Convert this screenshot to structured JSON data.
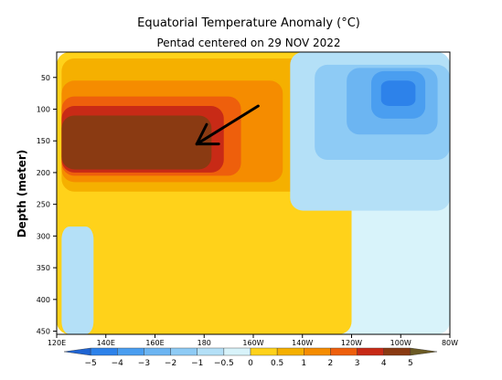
{
  "chart_data": {
    "type": "heatmap",
    "title": "Equatorial Temperature Anomaly (°C)",
    "subtitle": "Pentad centered on 29 NOV 2022",
    "ylabel": "Depth (meter)",
    "xlabel": "",
    "x_ticks": [
      "120E",
      "140E",
      "160E",
      "180",
      "160W",
      "140W",
      "120W",
      "100W",
      "80W"
    ],
    "x_tick_lon": [
      120,
      140,
      160,
      180,
      200,
      220,
      240,
      260,
      280
    ],
    "xlim": [
      120,
      280
    ],
    "y_ticks": [
      50,
      100,
      150,
      200,
      250,
      300,
      350,
      400,
      450
    ],
    "ylim": [
      455,
      10
    ],
    "y_reversed": true,
    "colorbar": {
      "tick_labels": [
        "−5",
        "−4",
        "−3",
        "−2",
        "−1",
        "−0.5",
        "0",
        "0.5",
        "1",
        "2",
        "3",
        "4",
        "5"
      ],
      "colors": [
        "#1f64d2",
        "#2d82ea",
        "#4a9ef0",
        "#6cb5f2",
        "#8ecbf5",
        "#b4e0f7",
        "#d8f3fa",
        "#ffd21a",
        "#f5b000",
        "#f58c00",
        "#ee5f0c",
        "#c82a16",
        "#8a3a12",
        "#6b5a24"
      ]
    },
    "anomaly_regions": [
      {
        "level": "-0.5 to 0",
        "color": "#d8f3fa",
        "lon_range": [
          120,
          280
        ],
        "depth_range": [
          10,
          455
        ]
      },
      {
        "level": "0 to 0.5",
        "color": "#ffd21a",
        "lon_range": [
          120,
          240
        ],
        "depth_range": [
          10,
          455
        ]
      },
      {
        "level": "0.5 to 1",
        "color": "#f5b000",
        "lon_range": [
          122,
          222
        ],
        "depth_range": [
          20,
          230
        ]
      },
      {
        "level": "1 to 2",
        "color": "#f58c00",
        "lon_range": [
          122,
          212
        ],
        "depth_range": [
          55,
          215
        ]
      },
      {
        "level": "2 to 3",
        "color": "#ee5f0c",
        "lon_range": [
          122,
          195
        ],
        "depth_range": [
          80,
          205
        ]
      },
      {
        "level": "3 to 4",
        "color": "#c82a16",
        "lon_range": [
          122,
          188
        ],
        "depth_range": [
          95,
          200
        ]
      },
      {
        "level": "4 to 5",
        "color": "#8a3a12",
        "lon_range": [
          122,
          183
        ],
        "depth_range": [
          110,
          195
        ]
      },
      {
        "level": "-1 to -0.5",
        "color": "#b4e0f7",
        "lon_range": [
          122,
          135
        ],
        "depth_range": [
          285,
          455
        ]
      },
      {
        "level": "-1 to -0.5",
        "color": "#b4e0f7",
        "lon_range": [
          215,
          280
        ],
        "depth_range": [
          10,
          260
        ]
      },
      {
        "level": "-2 to -1",
        "color": "#8ecbf5",
        "lon_range": [
          225,
          280
        ],
        "depth_range": [
          30,
          180
        ]
      },
      {
        "level": "-3 to -2",
        "color": "#6cb5f2",
        "lon_range": [
          238,
          275
        ],
        "depth_range": [
          35,
          140
        ]
      },
      {
        "level": "-4 to -3",
        "color": "#4a9ef0",
        "lon_range": [
          248,
          270
        ],
        "depth_range": [
          40,
          115
        ]
      },
      {
        "level": "-5 to -4",
        "color": "#2d82ea",
        "lon_range": [
          252,
          266
        ],
        "depth_range": [
          55,
          95
        ]
      }
    ],
    "annotation": {
      "type": "arrow",
      "from": {
        "lon": 202,
        "depth": 95
      },
      "to": {
        "lon": 177,
        "depth": 155
      },
      "color": "#000000"
    }
  }
}
